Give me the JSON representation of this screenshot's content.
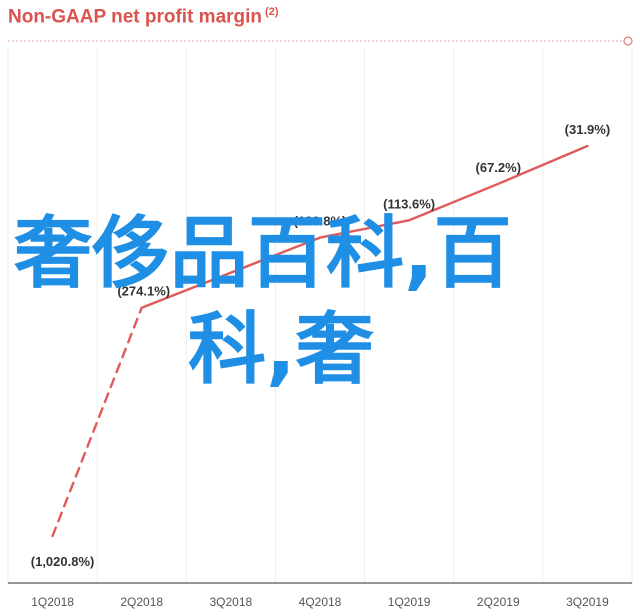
{
  "chart_data": {
    "type": "line",
    "title": "Non-GAAP net profit margin",
    "title_note": "(2)",
    "categories": [
      "1Q2018",
      "2Q2018",
      "3Q2018",
      "4Q2018",
      "1Q2019",
      "2Q2019",
      "3Q2019"
    ],
    "series": [
      {
        "values": [
          -1020.8,
          -274.1,
          null,
          -139.8,
          -113.6,
          -67.2,
          -31.9
        ],
        "labels": [
          "(1,020.8%)",
          "(274.1%)",
          "",
          "(139.8%)",
          "(113.6%)",
          "(67.2%)",
          "(31.9%)"
        ],
        "dashed_segments": [
          0
        ],
        "color": "#e05a5a"
      }
    ],
    "grid": "vertical",
    "legend": "none"
  },
  "overlay_text": {
    "line1": "奢侈品百科,百",
    "line2": "科,奢",
    "color": "#1f8fe6"
  }
}
